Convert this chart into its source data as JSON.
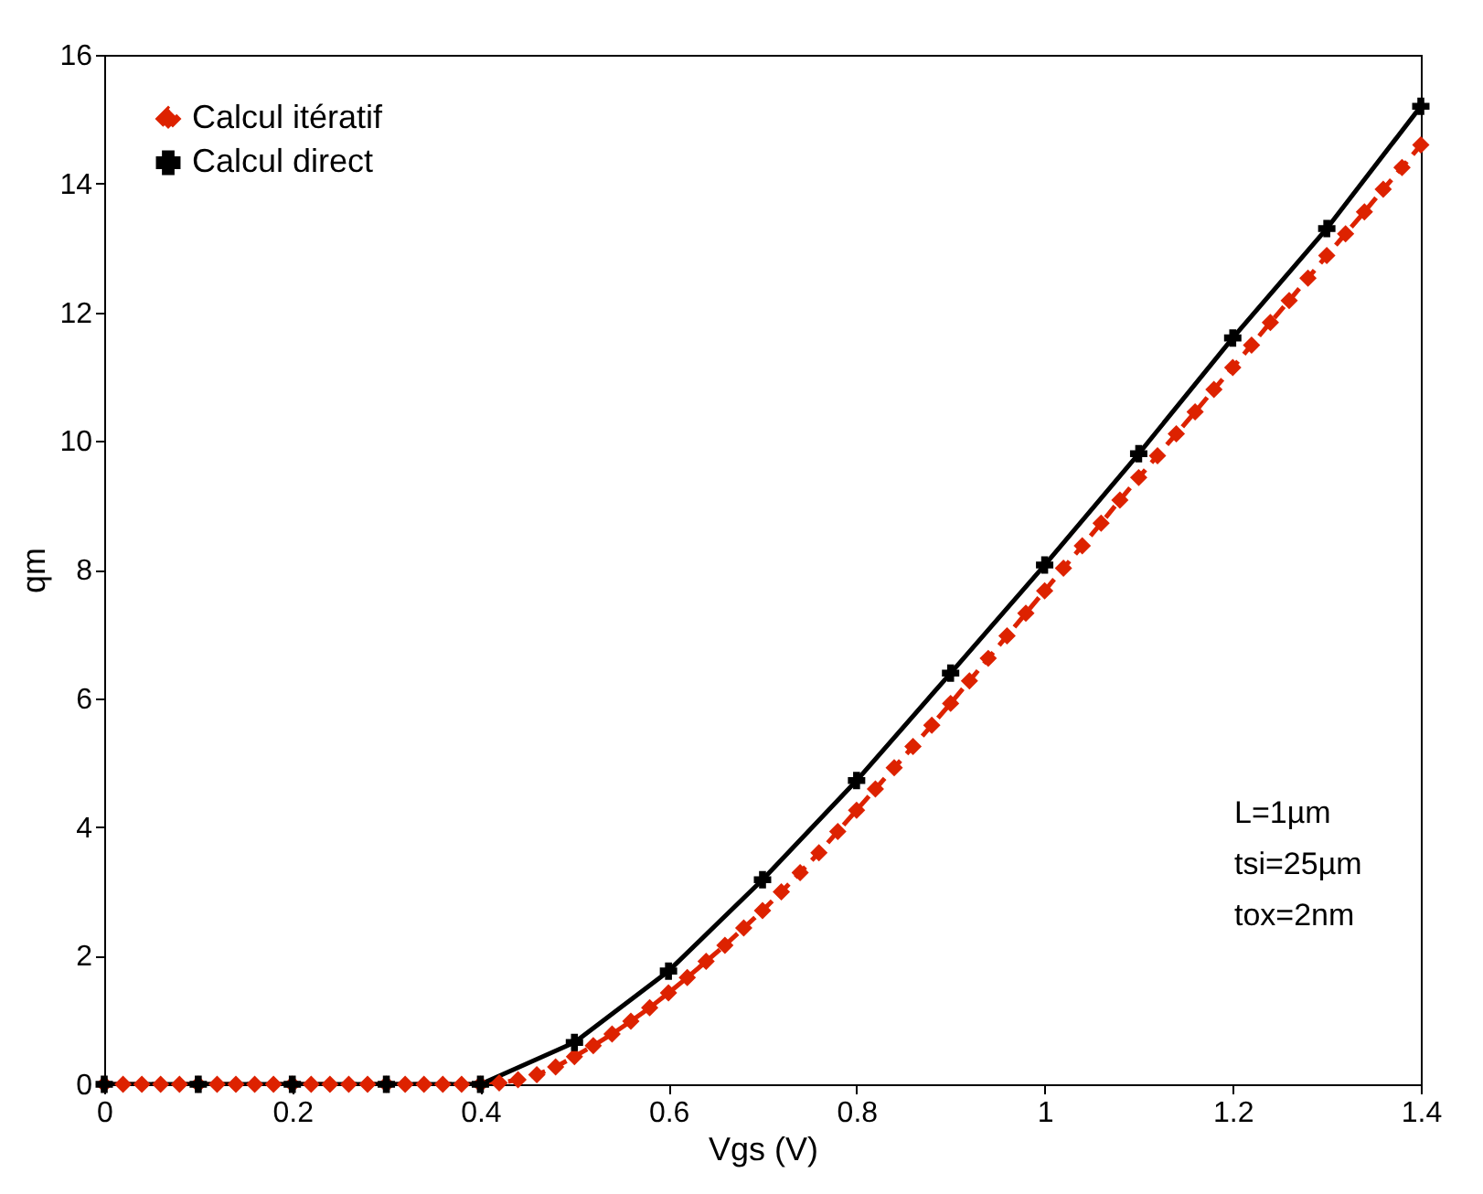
{
  "chart_data": {
    "type": "line",
    "xlabel": "Vgs (V)",
    "ylabel": "qm",
    "xlim": [
      0,
      1.4
    ],
    "xticks": [
      0,
      0.2,
      0.4,
      0.6,
      0.8,
      1,
      1.2,
      1.4
    ],
    "ylim": [
      0,
      16
    ],
    "yticks": [
      0,
      2,
      4,
      6,
      8,
      10,
      12,
      14,
      16
    ],
    "grid": false,
    "legend": "top left",
    "annotations": [
      "L=1µm",
      "tsi=25µm",
      "tox=2nm"
    ],
    "series": [
      {
        "name": "Calcul itératif",
        "color": "#dd2200",
        "marker": "diamond",
        "line_style": "dashed",
        "x": [
          0,
          0.02,
          0.04,
          0.06,
          0.08,
          0.1,
          0.12,
          0.14,
          0.16,
          0.18,
          0.2,
          0.22,
          0.24,
          0.26,
          0.28,
          0.3,
          0.32,
          0.34,
          0.36,
          0.38,
          0.4,
          0.42,
          0.44,
          0.46,
          0.48,
          0.5,
          0.52,
          0.54,
          0.56,
          0.58,
          0.6,
          0.62,
          0.64,
          0.66,
          0.68,
          0.7,
          0.72,
          0.74,
          0.76,
          0.78,
          0.8,
          0.82,
          0.84,
          0.86,
          0.88,
          0.9,
          0.92,
          0.94,
          0.96,
          0.98,
          1,
          1.02,
          1.04,
          1.06,
          1.08,
          1.1,
          1.12,
          1.14,
          1.16,
          1.18,
          1.2,
          1.22,
          1.24,
          1.26,
          1.28,
          1.3,
          1.32,
          1.34,
          1.36,
          1.38,
          1.4
        ],
        "values": [
          0,
          0,
          0,
          0,
          0,
          0,
          0,
          0,
          0,
          0,
          0,
          0,
          0,
          0,
          0,
          0,
          0,
          0,
          0,
          0,
          0,
          0.02,
          0.07,
          0.15,
          0.27,
          0.43,
          0.6,
          0.78,
          0.98,
          1.19,
          1.42,
          1.66,
          1.91,
          2.16,
          2.43,
          2.7,
          2.99,
          3.29,
          3.6,
          3.93,
          4.26,
          4.59,
          4.92,
          5.25,
          5.58,
          5.92,
          6.27,
          6.62,
          6.97,
          7.32,
          7.67,
          8.02,
          8.37,
          8.72,
          9.08,
          9.43,
          9.77,
          10.11,
          10.45,
          10.8,
          11.14,
          11.49,
          11.84,
          12.18,
          12.53,
          12.88,
          13.22,
          13.56,
          13.91,
          14.25,
          14.6
        ]
      },
      {
        "name": "Calcul direct",
        "color": "#000000",
        "marker": "cross",
        "line_style": "solid",
        "x": [
          0,
          0.1,
          0.2,
          0.3,
          0.4,
          0.5,
          0.6,
          0.7,
          0.8,
          0.9,
          1,
          1.1,
          1.2,
          1.3,
          1.4
        ],
        "values": [
          0,
          0,
          0,
          0,
          0,
          0.65,
          1.76,
          3.18,
          4.72,
          6.39,
          8.07,
          9.8,
          11.6,
          13.3,
          15.2
        ]
      }
    ]
  }
}
